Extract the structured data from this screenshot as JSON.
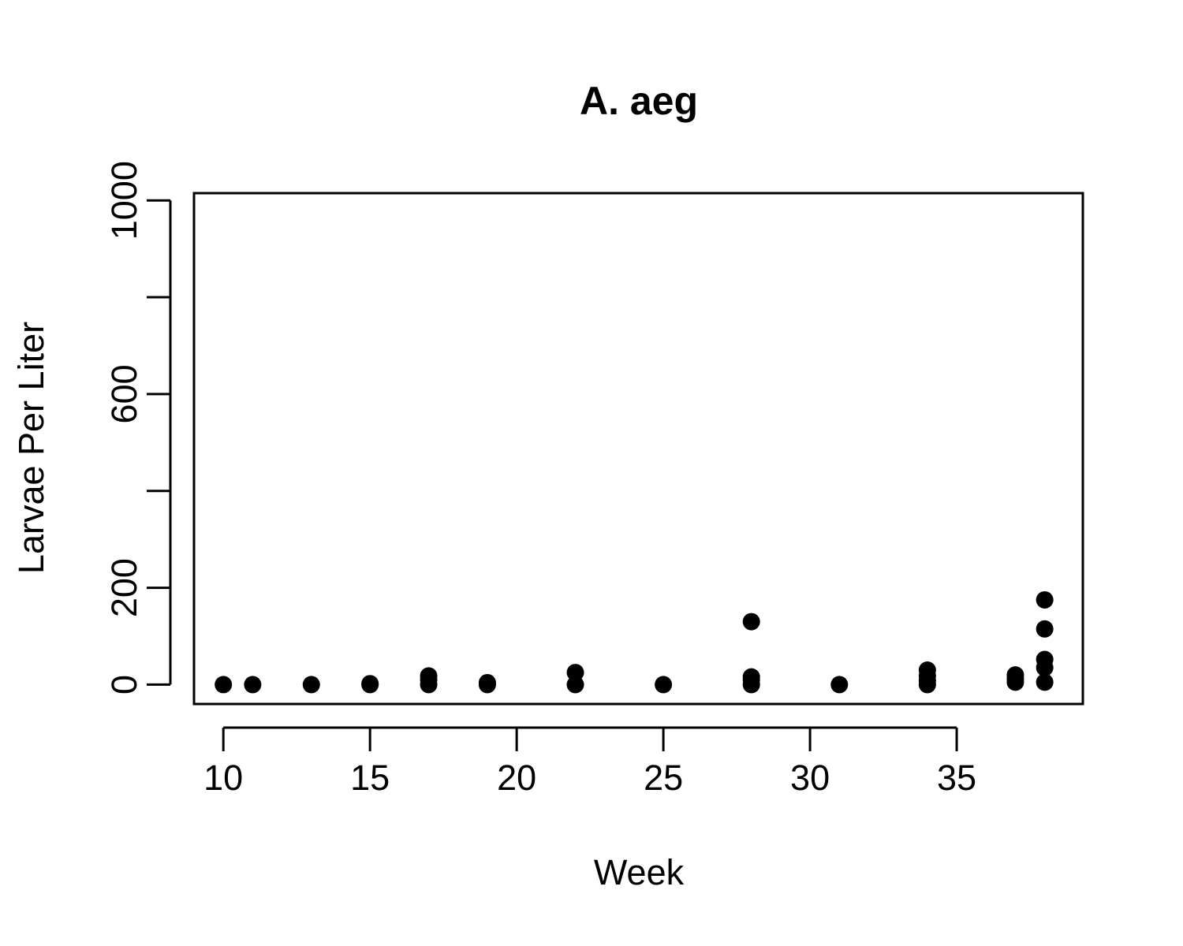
{
  "chart_data": {
    "type": "scatter",
    "title": "A. aeg",
    "xlabel": "Week",
    "ylabel": "Larvae Per Liter",
    "xlim": [
      9,
      39.3
    ],
    "ylim": [
      -40,
      1015
    ],
    "x_ticks": [
      10,
      15,
      20,
      25,
      30,
      35
    ],
    "x_tick_labels": [
      "10",
      "15",
      "20",
      "25",
      "30",
      "35"
    ],
    "y_ticks": [
      0,
      200,
      400,
      600,
      800,
      1000
    ],
    "y_tick_labels": [
      "0",
      "200",
      "",
      "600",
      "",
      "1000"
    ],
    "grid": false,
    "legend": "none",
    "marker_color": "#000000",
    "points": [
      {
        "x": 10,
        "y": 0
      },
      {
        "x": 11,
        "y": 0
      },
      {
        "x": 13,
        "y": 0
      },
      {
        "x": 15,
        "y": 0
      },
      {
        "x": 15,
        "y": 2
      },
      {
        "x": 17,
        "y": 0
      },
      {
        "x": 17,
        "y": 10
      },
      {
        "x": 17,
        "y": 18
      },
      {
        "x": 19,
        "y": 0
      },
      {
        "x": 19,
        "y": 4
      },
      {
        "x": 22,
        "y": 0
      },
      {
        "x": 22,
        "y": 25
      },
      {
        "x": 25,
        "y": 0
      },
      {
        "x": 28,
        "y": 0
      },
      {
        "x": 28,
        "y": 10
      },
      {
        "x": 28,
        "y": 16
      },
      {
        "x": 28,
        "y": 130
      },
      {
        "x": 31,
        "y": 0
      },
      {
        "x": 34,
        "y": 0
      },
      {
        "x": 34,
        "y": 8
      },
      {
        "x": 34,
        "y": 18
      },
      {
        "x": 34,
        "y": 30
      },
      {
        "x": 37,
        "y": 5
      },
      {
        "x": 37,
        "y": 12
      },
      {
        "x": 37,
        "y": 20
      },
      {
        "x": 38,
        "y": 5
      },
      {
        "x": 38,
        "y": 35
      },
      {
        "x": 38,
        "y": 52
      },
      {
        "x": 38,
        "y": 115
      },
      {
        "x": 38,
        "y": 175
      }
    ]
  }
}
